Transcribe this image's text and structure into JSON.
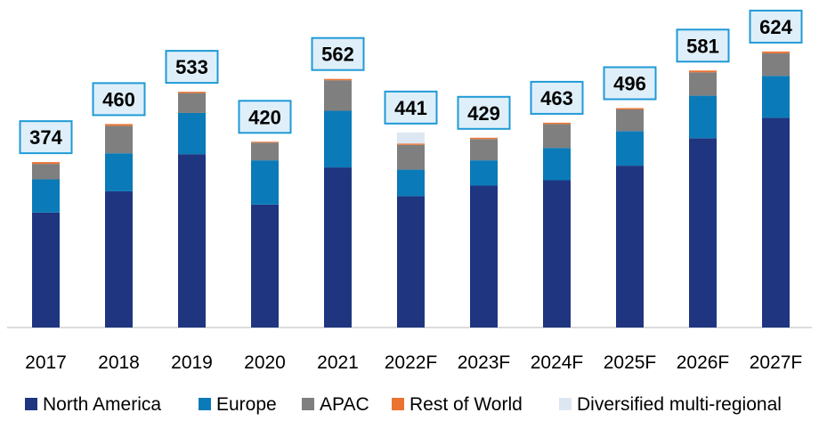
{
  "chart_data": {
    "type": "bar",
    "stacked": true,
    "title": "",
    "xlabel": "",
    "ylabel": "",
    "ylim": [
      0,
      660
    ],
    "grid": false,
    "legend_position": "bottom",
    "categories": [
      "2017",
      "2018",
      "2019",
      "2020",
      "2021",
      "2022F",
      "2023F",
      "2024F",
      "2025F",
      "2026F",
      "2027F"
    ],
    "totals": [
      "374",
      "460",
      "533",
      "420",
      "562",
      "441",
      "429",
      "463",
      "496",
      "581",
      "624"
    ],
    "series": [
      {
        "name": "North America",
        "color": "#1f3580",
        "values": [
          260,
          308,
          392,
          278,
          362,
          297,
          321,
          333,
          366,
          428,
          474
        ]
      },
      {
        "name": "Europe",
        "color": "#0a7bb8",
        "values": [
          75,
          86,
          93,
          100,
          128,
          60,
          57,
          73,
          78,
          96,
          95
        ]
      },
      {
        "name": "APAC",
        "color": "#7f7f7f",
        "values": [
          35,
          62,
          45,
          40,
          69,
          56,
          48,
          54,
          49,
          53,
          51
        ]
      },
      {
        "name": "Rest of World",
        "color": "#ea7331",
        "values": [
          4,
          4,
          3,
          2,
          3,
          3,
          3,
          3,
          3,
          4,
          4
        ]
      },
      {
        "name": "Diversified multi-regional",
        "color": "#dde7f2",
        "values": [
          0,
          0,
          0,
          0,
          0,
          25,
          0,
          0,
          0,
          0,
          0
        ]
      }
    ]
  },
  "style": {
    "label_box_fill": "#dfeff9",
    "label_box_stroke": "#1f9ad6",
    "axis_color": "#d0d0d0"
  }
}
